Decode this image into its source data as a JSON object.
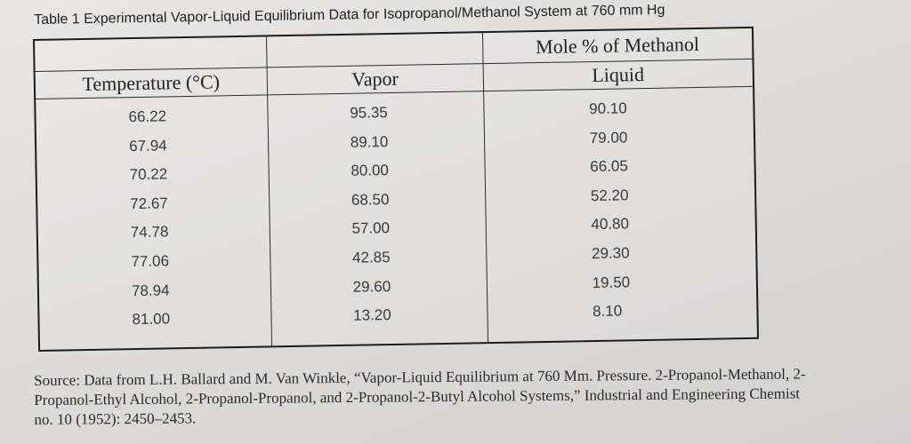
{
  "caption": "Table 1 Experimental Vapor-Liquid Equilibrium Data for Isopropanol/Methanol System at 760 mm Hg",
  "table": {
    "group_header": "Mole % of Methanol",
    "headers": [
      "Temperature (°C)",
      "Vapor",
      "Liquid"
    ],
    "rows": [
      [
        "66.22",
        "95.35",
        "90.10"
      ],
      [
        "67.94",
        "89.10",
        "79.00"
      ],
      [
        "70.22",
        "80.00",
        "66.05"
      ],
      [
        "72.67",
        "68.50",
        "52.20"
      ],
      [
        "74.78",
        "57.00",
        "40.80"
      ],
      [
        "77.06",
        "42.85",
        "29.30"
      ],
      [
        "78.94",
        "29.60",
        "19.50"
      ],
      [
        "81.00",
        "13.20",
        "8.10"
      ]
    ]
  },
  "source": {
    "line1": "Source: Data from L.H. Ballard and M. Van Winkle, “Vapor-Liquid Equilibrium at 760 Mm. Pressure. 2-Propanol-Methanol, 2-",
    "line2": "Propanol-Ethyl Alcohol, 2-Propanol-Propanol, and 2-Propanol-2-Butyl Alcohol Systems,” Industrial and Engineering Chemist",
    "line3": "no. 10 (1952): 2450–2453."
  }
}
